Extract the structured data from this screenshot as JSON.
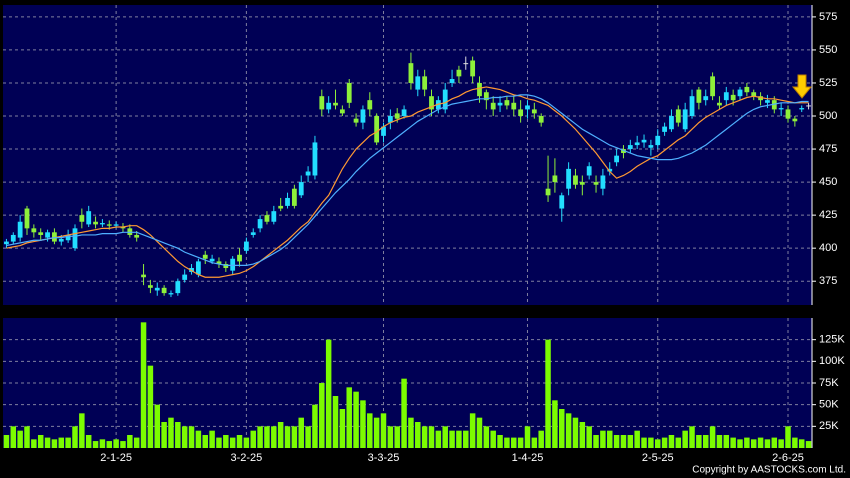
{
  "chart_data": [
    {
      "type": "candlestick",
      "up_color": "#22ddff",
      "down_color": "#8ef03a",
      "open": [
        403,
        405,
        408,
        430,
        415,
        412,
        408,
        412,
        405,
        406,
        400,
        425,
        418,
        420,
        418,
        418,
        417,
        416,
        415,
        410,
        380,
        372,
        368,
        370,
        365,
        366,
        376,
        382,
        380,
        395,
        390,
        390,
        388,
        383,
        395,
        398,
        410,
        415,
        425,
        420,
        432,
        432,
        445,
        440,
        455,
        455,
        515,
        505,
        510,
        505,
        525,
        498,
        495,
        512,
        500,
        485,
        495,
        502,
        500,
        540,
        520,
        530,
        515,
        505,
        505,
        525,
        535,
        540,
        542,
        525,
        518,
        510,
        508,
        512,
        510,
        505,
        505,
        505,
        500,
        445,
        455,
        430,
        445,
        455,
        450,
        455,
        450,
        445,
        458,
        465,
        475,
        475,
        478,
        480,
        476,
        478,
        488,
        490,
        505,
        490,
        500,
        520,
        512,
        530,
        510,
        512,
        516,
        515,
        522,
        518,
        515,
        510,
        512,
        505,
        505,
        498,
        505,
        508
      ],
      "high": [
        407,
        412,
        425,
        432,
        418,
        415,
        414,
        415,
        410,
        414,
        418,
        430,
        432,
        424,
        422,
        421,
        420,
        419,
        418,
        413,
        388,
        376,
        374,
        372,
        368,
        377,
        384,
        388,
        392,
        398,
        395,
        393,
        390,
        394,
        400,
        408,
        415,
        425,
        428,
        432,
        438,
        442,
        448,
        455,
        462,
        485,
        520,
        515,
        520,
        508,
        528,
        502,
        508,
        518,
        502,
        495,
        505,
        506,
        508,
        548,
        535,
        535,
        520,
        515,
        525,
        535,
        538,
        545,
        545,
        530,
        520,
        515,
        515,
        515,
        515,
        512,
        512,
        510,
        502,
        470,
        468,
        442,
        465,
        460,
        455,
        465,
        455,
        460,
        465,
        475,
        478,
        482,
        485,
        486,
        482,
        490,
        495,
        505,
        508,
        510,
        520,
        522,
        520,
        533,
        515,
        522,
        520,
        522,
        525,
        520,
        518,
        516,
        515,
        510,
        508,
        500,
        508,
        510
      ],
      "low": [
        400,
        403,
        405,
        410,
        408,
        406,
        405,
        403,
        402,
        404,
        398,
        415,
        416,
        415,
        416,
        414,
        415,
        412,
        408,
        405,
        372,
        366,
        364,
        364,
        363,
        364,
        374,
        380,
        378,
        388,
        388,
        385,
        382,
        380,
        386,
        396,
        408,
        412,
        418,
        418,
        428,
        430,
        430,
        438,
        450,
        452,
        500,
        502,
        505,
        500,
        506,
        492,
        490,
        500,
        478,
        480,
        490,
        495,
        498,
        520,
        515,
        515,
        500,
        502,
        502,
        522,
        525,
        535,
        525,
        510,
        505,
        500,
        503,
        505,
        500,
        495,
        498,
        498,
        492,
        435,
        442,
        420,
        440,
        445,
        440,
        452,
        442,
        440,
        455,
        462,
        468,
        472,
        475,
        476,
        470,
        475,
        485,
        488,
        492,
        488,
        498,
        505,
        508,
        512,
        505,
        508,
        508,
        512,
        515,
        512,
        508,
        506,
        502,
        500,
        495,
        492,
        503,
        505
      ],
      "close": [
        405,
        410,
        420,
        415,
        412,
        410,
        412,
        405,
        407,
        410,
        415,
        420,
        428,
        418,
        419,
        417,
        418,
        415,
        410,
        408,
        378,
        370,
        370,
        366,
        366,
        375,
        380,
        385,
        390,
        392,
        392,
        388,
        385,
        392,
        390,
        405,
        412,
        422,
        420,
        428,
        430,
        438,
        432,
        450,
        458,
        480,
        505,
        510,
        508,
        502,
        510,
        495,
        505,
        505,
        480,
        492,
        500,
        498,
        505,
        525,
        530,
        520,
        505,
        512,
        520,
        528,
        530,
        540,
        530,
        515,
        512,
        505,
        510,
        508,
        505,
        500,
        508,
        502,
        495,
        440,
        450,
        440,
        460,
        448,
        448,
        462,
        448,
        455,
        460,
        470,
        472,
        478,
        480,
        482,
        478,
        485,
        492,
        500,
        495,
        505,
        515,
        510,
        515,
        515,
        508,
        518,
        512,
        520,
        518,
        515,
        512,
        512,
        505,
        506,
        498,
        496,
        506,
        508
      ],
      "series": [
        {
          "color": "#ff9933",
          "values": [
            400,
            401,
            402,
            404,
            405,
            406,
            407,
            408,
            409,
            410,
            411,
            412,
            413,
            414,
            415,
            415,
            416,
            416,
            417,
            417,
            414,
            410,
            405,
            400,
            395,
            390,
            386,
            383,
            380,
            378,
            378,
            378,
            379,
            380,
            381,
            383,
            386,
            390,
            394,
            398,
            402,
            406,
            411,
            416,
            420,
            427,
            434,
            440,
            450,
            460,
            468,
            475,
            480,
            485,
            488,
            492,
            495,
            497,
            499,
            500,
            503,
            505,
            507,
            509,
            510,
            513,
            515,
            518,
            520,
            521,
            522,
            521,
            520,
            518,
            516,
            515,
            513,
            512,
            510,
            508,
            504,
            500,
            495,
            490,
            484,
            478,
            472,
            465,
            458,
            453,
            455,
            458,
            462,
            465,
            468,
            470,
            474,
            478,
            482,
            485,
            490,
            495,
            499,
            502,
            505,
            508,
            510,
            512,
            514,
            515,
            514,
            513,
            513,
            512,
            511,
            510,
            510,
            510
          ]
        },
        {
          "color": "#4fb0ff",
          "values": [
            402,
            403,
            404,
            405,
            406,
            406,
            407,
            408,
            408,
            409,
            409,
            410,
            410,
            410,
            411,
            411,
            411,
            412,
            412,
            412,
            410,
            408,
            406,
            404,
            402,
            400,
            397,
            395,
            393,
            391,
            389,
            388,
            387,
            387,
            387,
            387,
            388,
            390,
            393,
            396,
            399,
            403,
            408,
            413,
            418,
            424,
            430,
            436,
            442,
            447,
            452,
            458,
            463,
            468,
            472,
            476,
            480,
            484,
            488,
            492,
            496,
            499,
            502,
            505,
            507,
            509,
            510,
            511,
            512,
            513,
            513,
            514,
            514,
            515,
            515,
            516,
            516,
            515,
            513,
            510,
            506,
            502,
            498,
            494,
            490,
            487,
            484,
            481,
            478,
            476,
            474,
            472,
            470,
            469,
            468,
            467,
            467,
            467,
            468,
            470,
            472,
            475,
            478,
            482,
            486,
            490,
            494,
            498,
            502,
            505,
            507,
            508,
            509,
            510,
            510,
            510,
            511,
            511
          ]
        }
      ],
      "ylim": [
        357,
        584
      ],
      "yticks": [
        375,
        400,
        425,
        450,
        475,
        500,
        525,
        550,
        575
      ],
      "grid": true
    },
    {
      "type": "bar",
      "color": "#7cfc00",
      "categories": [
        null,
        null,
        null,
        null,
        null,
        null,
        null,
        null,
        null,
        null,
        null,
        null,
        null,
        null,
        null,
        null,
        "2-1-25",
        null,
        null,
        null,
        null,
        null,
        null,
        null,
        null,
        null,
        null,
        null,
        null,
        null,
        null,
        null,
        null,
        null,
        null,
        "3-2-25",
        null,
        null,
        null,
        null,
        null,
        null,
        null,
        null,
        null,
        null,
        null,
        null,
        null,
        null,
        null,
        null,
        null,
        null,
        null,
        "3-3-25",
        null,
        null,
        null,
        null,
        null,
        null,
        null,
        null,
        null,
        null,
        null,
        null,
        null,
        null,
        null,
        null,
        null,
        null,
        null,
        null,
        "1-4-25",
        null,
        null,
        null,
        null,
        null,
        null,
        null,
        null,
        null,
        null,
        null,
        null,
        null,
        null,
        null,
        null,
        null,
        null,
        "2-5-25",
        null,
        null,
        null,
        null,
        null,
        null,
        null,
        null,
        null,
        null,
        null,
        null,
        null,
        null,
        null,
        null,
        null,
        null,
        "2-6-25",
        null,
        null,
        null
      ],
      "values": [
        15000,
        25000,
        20000,
        25000,
        10000,
        15000,
        12000,
        10000,
        12000,
        12000,
        25000,
        40000,
        15000,
        8000,
        10000,
        8000,
        10000,
        8000,
        15000,
        12000,
        145000,
        95000,
        50000,
        30000,
        35000,
        30000,
        25000,
        25000,
        20000,
        15000,
        20000,
        12000,
        15000,
        12000,
        15000,
        12000,
        20000,
        25000,
        25000,
        25000,
        30000,
        25000,
        25000,
        35000,
        25000,
        50000,
        75000,
        125000,
        60000,
        45000,
        70000,
        65000,
        55000,
        40000,
        35000,
        40000,
        25000,
        25000,
        80000,
        35000,
        30000,
        25000,
        25000,
        20000,
        25000,
        20000,
        20000,
        20000,
        40000,
        35000,
        25000,
        20000,
        15000,
        12000,
        12000,
        12000,
        25000,
        12000,
        20000,
        125000,
        55000,
        45000,
        40000,
        35000,
        30000,
        25000,
        15000,
        20000,
        20000,
        15000,
        15000,
        15000,
        20000,
        12000,
        12000,
        10000,
        12000,
        15000,
        12000,
        20000,
        25000,
        15000,
        15000,
        25000,
        15000,
        15000,
        12000,
        10000,
        12000,
        10000,
        12000,
        10000,
        12000,
        10000,
        25000,
        12000,
        10000,
        8000
      ],
      "ylim": [
        0,
        150000
      ],
      "yticks": [
        {
          "value": 25000,
          "label": "25K"
        },
        {
          "value": 50000,
          "label": "50K"
        },
        {
          "value": 75000,
          "label": "75K"
        },
        {
          "value": 100000,
          "label": "100K"
        },
        {
          "value": 125000,
          "label": "125K"
        }
      ],
      "grid": true
    }
  ],
  "footer": "Copyright by AASTOCKS.com Ltd."
}
